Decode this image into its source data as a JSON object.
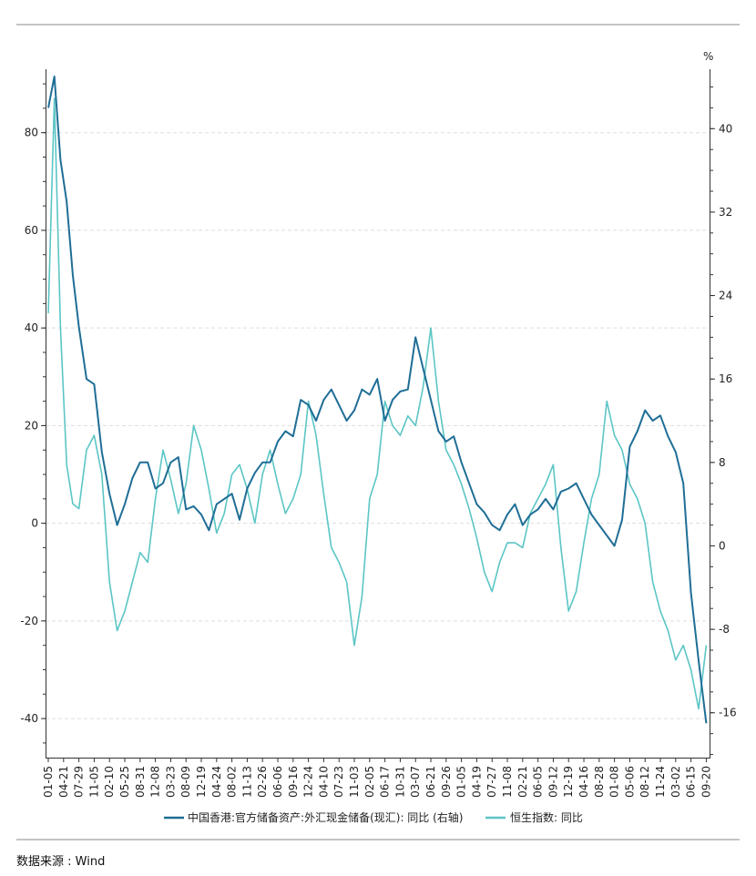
{
  "chart_data": {
    "type": "line",
    "source_label": "数据来源 : Wind",
    "right_axis_unit": "%",
    "left_axis": {
      "ylim": [
        -48,
        93
      ],
      "ticks": [
        80,
        60,
        40,
        20,
        0,
        -20,
        -40
      ]
    },
    "right_axis": {
      "ylim": [
        -20.3,
        45.7
      ],
      "ticks": [
        40,
        32,
        24,
        16,
        8,
        0,
        -8,
        -16
      ]
    },
    "x_tick_labels": [
      "01-05",
      "04-21",
      "07-29",
      "11-05",
      "02-10",
      "05-25",
      "08-31",
      "12-08",
      "03-23",
      "08-09",
      "12-19",
      "04-24",
      "08-02",
      "11-13",
      "02-26",
      "06-06",
      "09-16",
      "12-24",
      "04-10",
      "07-23",
      "11-03",
      "02-05",
      "06-17",
      "10-31",
      "03-07",
      "06-21",
      "09-26",
      "01-05",
      "04-19",
      "07-27",
      "11-08",
      "02-21",
      "06-05",
      "09-12",
      "12-19",
      "04-16",
      "08-28",
      "01-08",
      "05-06",
      "08-12",
      "11-24",
      "03-02",
      "06-15",
      "09-20"
    ],
    "series": [
      {
        "name": "中国香港:官方储备资产:外汇现金储备(现汇): 同比 (右轴)",
        "axis": "right",
        "color": "#1f6e96",
        "x": [
          0,
          0.4,
          0.8,
          1.2,
          1.6,
          2.0,
          2.5,
          3.0,
          3.5,
          4.0,
          4.5,
          5.0,
          5.5,
          6.0,
          6.5,
          7.0,
          7.5,
          8.0,
          8.5,
          9.0,
          9.5,
          10.0,
          10.5,
          11.0,
          11.5,
          12.0,
          12.5,
          13.0,
          13.5,
          14.0,
          14.5,
          15.0,
          15.5,
          16.0,
          16.5,
          17.0,
          17.5,
          18.0,
          18.5,
          19.0,
          19.5,
          20.0,
          20.5,
          21.0,
          21.5,
          22.0,
          22.5,
          23.0,
          23.5,
          24.0,
          24.5,
          25.0,
          25.5,
          26.0,
          26.5,
          27.0,
          27.5,
          28.0,
          28.5,
          29.0,
          29.5,
          30.0,
          30.5,
          31.0,
          31.5,
          32.0,
          32.5,
          33.0,
          33.5,
          34.0,
          34.5,
          35.0,
          35.5,
          36.0,
          36.5,
          37.0,
          37.5,
          38.0,
          38.5,
          39.0,
          39.5,
          40.0,
          40.5,
          41.0,
          41.5,
          42.0,
          42.5,
          43.0
        ],
        "values": [
          42,
          45,
          37,
          33,
          26,
          21,
          16,
          15.5,
          9,
          5,
          2,
          4,
          6.5,
          8,
          8,
          5.5,
          6,
          8,
          8.5,
          3.5,
          3.8,
          3,
          1.5,
          4,
          4.5,
          5,
          2.5,
          5.5,
          7,
          8,
          8,
          10,
          11,
          10.5,
          14,
          13.5,
          12,
          14,
          15,
          13.5,
          12,
          13,
          15,
          14.5,
          16,
          12,
          14,
          14.8,
          15,
          20,
          17,
          14,
          11,
          10,
          10.5,
          8,
          6,
          4,
          3.2,
          2,
          1.5,
          3,
          4,
          2,
          3,
          3.5,
          4.5,
          3.5,
          5.2,
          5.5,
          6,
          4.5,
          3,
          2,
          1,
          0,
          2.5,
          9.5,
          11,
          13,
          12,
          12.5,
          10.5,
          9,
          6,
          -4.5,
          -11,
          -17
        ]
      },
      {
        "name": "恒生指数: 同比",
        "axis": "left",
        "color": "#5cc5c5",
        "x": [
          0,
          0.4,
          0.8,
          1.2,
          1.6,
          2.0,
          2.5,
          3.0,
          3.5,
          4.0,
          4.5,
          5.0,
          5.5,
          6.0,
          6.5,
          7.0,
          7.5,
          8.0,
          8.5,
          9.0,
          9.5,
          10.0,
          10.5,
          11.0,
          11.5,
          12.0,
          12.5,
          13.0,
          13.5,
          14.0,
          14.5,
          15.0,
          15.5,
          16.0,
          16.5,
          17.0,
          17.5,
          18.0,
          18.5,
          19.0,
          19.5,
          20.0,
          20.5,
          21.0,
          21.5,
          22.0,
          22.5,
          23.0,
          23.5,
          24.0,
          24.5,
          25.0,
          25.5,
          26.0,
          26.5,
          27.0,
          27.5,
          28.0,
          28.5,
          29.0,
          29.5,
          30.0,
          30.5,
          31.0,
          31.5,
          32.0,
          32.5,
          33.0,
          33.5,
          34.0,
          34.5,
          35.0,
          35.5,
          36.0,
          36.5,
          37.0,
          37.5,
          38.0,
          38.5,
          39.0,
          39.5,
          40.0,
          40.5,
          41.0,
          41.5,
          42.0,
          42.5,
          43.0
        ],
        "values": [
          43,
          87,
          40,
          12,
          4,
          3,
          15,
          18,
          10,
          -12,
          -22,
          -18,
          -12,
          -6,
          -8,
          5,
          15,
          9,
          2,
          8,
          20,
          15,
          7,
          -2,
          2,
          10,
          12,
          7,
          0,
          10,
          15,
          8,
          2,
          5,
          10,
          25,
          18,
          6,
          -5,
          -8,
          -12,
          -25,
          -15,
          5,
          10,
          25,
          20,
          18,
          22,
          20,
          28,
          40,
          25,
          15,
          12,
          8,
          3,
          -3,
          -10,
          -14,
          -8,
          -4,
          -4,
          -5,
          2,
          5,
          8,
          12,
          -5,
          -18,
          -14,
          -4,
          5,
          10,
          25,
          18,
          15,
          8,
          5,
          0,
          -12,
          -18,
          -22,
          -28,
          -25,
          -30,
          -38,
          -25
        ]
      }
    ]
  }
}
